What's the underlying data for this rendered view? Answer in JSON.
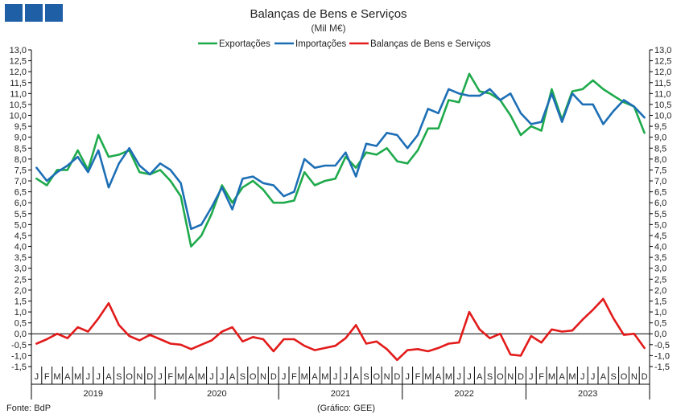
{
  "chart_data": {
    "type": "line",
    "title": "Balanças de Bens e Serviços",
    "subtitle": "(Mil M€)",
    "footer_left": "Fonte: BdP",
    "footer_center": "(Gráfico: GEE)",
    "ylim": [
      -1.5,
      13.0
    ],
    "y_ticks": [
      "-1,5",
      "-1,0",
      "-0,5",
      "0,0",
      "0,5",
      "1,0",
      "1,5",
      "2,0",
      "2,5",
      "3,0",
      "3,5",
      "4,0",
      "4,5",
      "5,0",
      "5,5",
      "6,0",
      "6,5",
      "7,0",
      "7,5",
      "8,0",
      "8,5",
      "9,0",
      "9,5",
      "10,0",
      "10,5",
      "11,0",
      "11,5",
      "12,0",
      "12,5",
      "13,0"
    ],
    "months": [
      "J",
      "F",
      "M",
      "A",
      "M",
      "J",
      "J",
      "A",
      "S",
      "O",
      "N",
      "D"
    ],
    "years": [
      "2019",
      "2020",
      "2021",
      "2022",
      "2023"
    ],
    "legend_position": "top-center",
    "series": [
      {
        "name": "Exportações",
        "color": "#1faa4c",
        "values": [
          7.1,
          6.8,
          7.5,
          7.5,
          8.4,
          7.5,
          9.1,
          8.1,
          8.2,
          8.4,
          7.4,
          7.3,
          7.5,
          7.0,
          6.3,
          4.0,
          4.5,
          5.5,
          6.8,
          6.0,
          6.7,
          7.0,
          6.6,
          6.0,
          6.0,
          6.1,
          7.4,
          6.8,
          7.0,
          7.1,
          8.1,
          7.6,
          8.3,
          8.2,
          8.5,
          7.9,
          7.8,
          8.4,
          9.4,
          9.4,
          10.7,
          10.6,
          11.9,
          11.1,
          11.0,
          10.7,
          10.0,
          9.1,
          9.5,
          9.3,
          11.2,
          9.8,
          11.1,
          11.2,
          11.6,
          11.2,
          10.9,
          10.6,
          10.4,
          9.2
        ]
      },
      {
        "name": "Importações",
        "color": "#1d6fb5",
        "values": [
          7.6,
          7.0,
          7.4,
          7.7,
          8.1,
          7.4,
          8.4,
          6.7,
          7.8,
          8.5,
          7.7,
          7.3,
          7.8,
          7.5,
          6.9,
          4.8,
          5.0,
          5.8,
          6.7,
          5.7,
          7.1,
          7.2,
          6.9,
          6.8,
          6.3,
          6.5,
          8.0,
          7.6,
          7.7,
          7.7,
          8.3,
          7.2,
          8.7,
          8.6,
          9.2,
          9.1,
          8.5,
          9.1,
          10.3,
          10.1,
          11.2,
          11.0,
          10.9,
          10.9,
          11.2,
          10.7,
          11.0,
          10.1,
          9.6,
          9.7,
          11.0,
          9.7,
          11.0,
          10.5,
          10.5,
          9.6,
          10.2,
          10.7,
          10.4,
          9.9
        ]
      },
      {
        "name": "Balanças de Bens e Serviços",
        "color": "#e21b1b",
        "values": [
          -0.45,
          -0.25,
          0.0,
          -0.2,
          0.3,
          0.1,
          0.7,
          1.4,
          0.4,
          -0.1,
          -0.3,
          -0.05,
          -0.25,
          -0.45,
          -0.5,
          -0.7,
          -0.5,
          -0.3,
          0.1,
          0.3,
          -0.35,
          -0.15,
          -0.25,
          -0.8,
          -0.25,
          -0.25,
          -0.55,
          -0.75,
          -0.65,
          -0.55,
          -0.2,
          0.4,
          -0.45,
          -0.35,
          -0.7,
          -1.2,
          -0.75,
          -0.7,
          -0.8,
          -0.65,
          -0.45,
          -0.4,
          1.0,
          0.2,
          -0.2,
          0.0,
          -0.95,
          -1.0,
          -0.1,
          -0.4,
          0.2,
          0.1,
          0.15,
          0.65,
          1.1,
          1.6,
          0.7,
          -0.05,
          0.0,
          -0.65
        ]
      }
    ]
  }
}
